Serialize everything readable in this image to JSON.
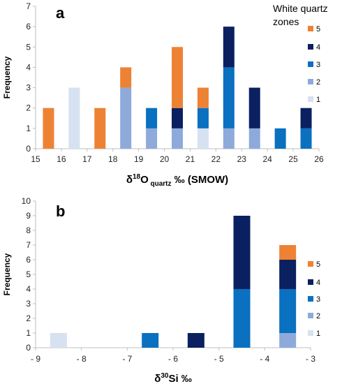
{
  "zone_colors": {
    "1": "#d6e1f1",
    "2": "#8eaadb",
    "3": "#0a70c0",
    "4": "#0b2060",
    "5": "#ee8234"
  },
  "chart_data": [
    {
      "type": "bar",
      "stacked": true,
      "panel_label": "a",
      "xlabel_prefix": "δ",
      "xlabel_sup": "18",
      "xlabel_main": "O",
      "xlabel_sub": "quartz",
      "xlabel_suffix": " ‰  (SMOW)",
      "ylabel": "Frequency",
      "xlim": [
        15,
        26
      ],
      "ylim": [
        0,
        7
      ],
      "xticks": [
        "15",
        "16",
        "17",
        "18",
        "19",
        "20",
        "21",
        "22",
        "23",
        "24",
        "25",
        "26"
      ],
      "yticks": [
        "0",
        "1",
        "2",
        "3",
        "4",
        "5",
        "6",
        "7"
      ],
      "legend_title": [
        "White quartz",
        "zones"
      ],
      "legend_position": "top-right",
      "legend": [
        "5",
        "4",
        "3",
        "2",
        "1"
      ],
      "bins": [
        {
          "x": 15.5,
          "z1": 0,
          "z2": 0,
          "z3": 0,
          "z4": 0,
          "z5": 2
        },
        {
          "x": 16.5,
          "z1": 3,
          "z2": 0,
          "z3": 0,
          "z4": 0,
          "z5": 0
        },
        {
          "x": 17.5,
          "z1": 0,
          "z2": 0,
          "z3": 0,
          "z4": 0,
          "z5": 2
        },
        {
          "x": 18.5,
          "z1": 0,
          "z2": 3,
          "z3": 0,
          "z4": 0,
          "z5": 1
        },
        {
          "x": 19.5,
          "z1": 0,
          "z2": 1,
          "z3": 1,
          "z4": 0,
          "z5": 0
        },
        {
          "x": 20.5,
          "z1": 0,
          "z2": 1,
          "z3": 0,
          "z4": 1,
          "z5": 3
        },
        {
          "x": 21.5,
          "z1": 1,
          "z2": 0,
          "z3": 1,
          "z4": 0,
          "z5": 1
        },
        {
          "x": 22.5,
          "z1": 0,
          "z2": 1,
          "z3": 3,
          "z4": 2,
          "z5": 0
        },
        {
          "x": 23.5,
          "z1": 0,
          "z2": 1,
          "z3": 0,
          "z4": 2,
          "z5": 0
        },
        {
          "x": 24.5,
          "z1": 0,
          "z2": 0,
          "z3": 1,
          "z4": 0,
          "z5": 0
        },
        {
          "x": 25.5,
          "z1": 0,
          "z2": 0,
          "z3": 1,
          "z4": 1,
          "z5": 0
        }
      ]
    },
    {
      "type": "bar",
      "stacked": true,
      "panel_label": "b",
      "xlabel_prefix": "δ",
      "xlabel_sup": "30",
      "xlabel_main": "Si",
      "xlabel_sub": "",
      "xlabel_suffix": " ‰",
      "ylabel": "Frequency",
      "xlim": [
        -9,
        -3
      ],
      "ylim": [
        0,
        10
      ],
      "xticks": [
        "- 9",
        "- 8",
        "- 7",
        "- 6",
        "- 5",
        "- 4",
        "- 3"
      ],
      "yticks": [
        "0",
        "1",
        "2",
        "3",
        "4",
        "5",
        "6",
        "7",
        "8",
        "9",
        "10"
      ],
      "legend_position": "right",
      "legend": [
        "5",
        "4",
        "3",
        "2",
        "1"
      ],
      "bins": [
        {
          "x": -8.5,
          "z1": 1,
          "z2": 0,
          "z3": 0,
          "z4": 0,
          "z5": 0
        },
        {
          "x": -6.5,
          "z1": 0,
          "z2": 0,
          "z3": 1,
          "z4": 0,
          "z5": 0
        },
        {
          "x": -5.5,
          "z1": 0,
          "z2": 0,
          "z3": 0,
          "z4": 1,
          "z5": 0
        },
        {
          "x": -4.5,
          "z1": 0,
          "z2": 0,
          "z3": 4,
          "z4": 5,
          "z5": 0
        },
        {
          "x": -3.5,
          "z1": 0,
          "z2": 1,
          "z3": 3,
          "z4": 2,
          "z5": 1
        }
      ]
    }
  ]
}
